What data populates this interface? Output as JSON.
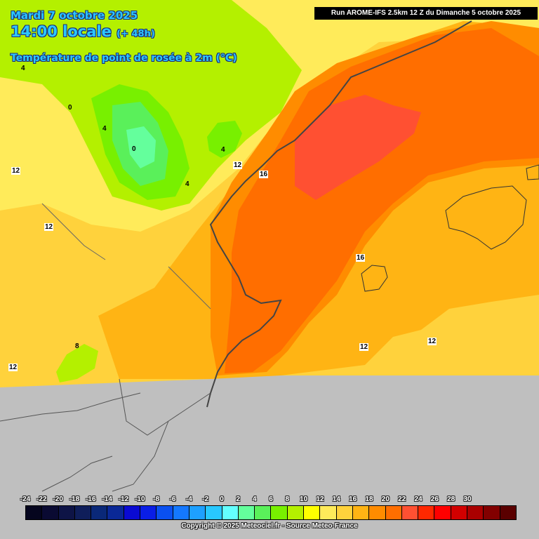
{
  "header": {
    "date": "Mardi 7 octobre 2025",
    "time": "14:00 locale",
    "lead": "(+ 48h)",
    "parameter": "Température de point de rosée à 2m (°C)"
  },
  "run_banner": "Run AROME-IFS 2.5km 12 Z du Dimanche 5 octobre 2025",
  "isolines": {
    "l1": "4",
    "l2": "0",
    "l3": "4",
    "l4": "0",
    "l5": "4",
    "l6": "4",
    "l7": "12",
    "l8": "12",
    "l9": "16",
    "l10": "12",
    "l11": "16",
    "l12": "12",
    "l13": "12",
    "l14": "8",
    "l15": "12"
  },
  "legend": {
    "ticks": [
      "-24",
      "-22",
      "-20",
      "-18",
      "-16",
      "-14",
      "-12",
      "-10",
      "-8",
      "-6",
      "-4",
      "-2",
      "0",
      "2",
      "4",
      "6",
      "8",
      "10",
      "12",
      "14",
      "16",
      "18",
      "20",
      "22",
      "24",
      "26",
      "28",
      "30"
    ],
    "colors": [
      "#05051e",
      "#0a0a32",
      "#0e1446",
      "#0f1e5a",
      "#0a2878",
      "#0a2896",
      "#0a0ad2",
      "#0a1ee6",
      "#0a50f0",
      "#1478ff",
      "#1ea0ff",
      "#28c8ff",
      "#64ffff",
      "#64ff9c",
      "#5af05a",
      "#78f000",
      "#b4f000",
      "#ffff00",
      "#ffeb5a",
      "#ffd23c",
      "#ffb414",
      "#ff8c00",
      "#ff6e00",
      "#ff5032",
      "#ff2800",
      "#ff0000",
      "#d20000",
      "#aa0000",
      "#820000",
      "#5a0000"
    ]
  },
  "copyright": "Copyright © 2025 Meteociel.fr - Source Meteo-France",
  "map_colors": {
    "no_data": "#bfbfbf",
    "band_0_2": "#64ff9c",
    "band_2_4": "#5af05a",
    "band_4_6": "#78f000",
    "band_6_8": "#b4f000",
    "band_8_10": "#ffff00",
    "band_10_12": "#ffeb5a",
    "band_12_14": "#ffd23c",
    "band_14_16": "#ffb414",
    "band_16_18": "#ff8c00",
    "band_18_20": "#ff6e00",
    "band_20_22": "#ff5032"
  }
}
